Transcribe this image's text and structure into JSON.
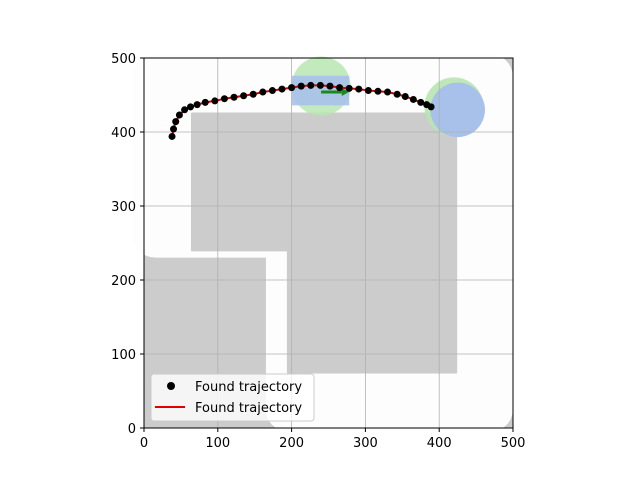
{
  "chart_data": {
    "type": "scatter",
    "title": "",
    "xlabel": "",
    "ylabel": "",
    "xlim": [
      0,
      500
    ],
    "ylim": [
      0,
      500
    ],
    "xticks": [
      0,
      100,
      200,
      300,
      400,
      500
    ],
    "yticks": [
      0,
      100,
      200,
      300,
      400,
      500
    ],
    "grid": true,
    "legend_position": "lower-left",
    "series": [
      {
        "name": "Found trajectory",
        "kind": "points",
        "color": "#000000",
        "x": [
          38,
          40,
          43,
          48,
          55,
          63,
          72,
          83,
          96,
          109,
          122,
          135,
          148,
          161,
          174,
          187,
          200,
          213,
          226,
          239,
          252,
          265,
          278,
          291,
          304,
          317,
          330,
          343,
          354,
          365,
          375,
          383,
          389
        ],
        "y": [
          394,
          404,
          414,
          423,
          430,
          434,
          437,
          440,
          442,
          445,
          447,
          449,
          451,
          454,
          456,
          458,
          460,
          462,
          463,
          463,
          462,
          460,
          459,
          458,
          456,
          455,
          454,
          451,
          448,
          444,
          440,
          437,
          434
        ]
      },
      {
        "name": "Found trajectory",
        "kind": "line",
        "color": "#e00000",
        "x": [
          38,
          40,
          43,
          48,
          55,
          63,
          72,
          83,
          96,
          109,
          122,
          135,
          148,
          161,
          174,
          187,
          200,
          213,
          226,
          239,
          252,
          265,
          278,
          291,
          304,
          317,
          330,
          343,
          354,
          365,
          375,
          383,
          389
        ],
        "y": [
          394,
          404,
          414,
          423,
          430,
          434,
          437,
          440,
          442,
          445,
          447,
          449,
          451,
          454,
          456,
          458,
          460,
          462,
          463,
          463,
          462,
          460,
          459,
          458,
          456,
          455,
          454,
          451,
          448,
          444,
          440,
          437,
          434
        ]
      }
    ],
    "background_map": {
      "grey_color": "#cccccc",
      "road_color": "#fdfdfd",
      "road_outer": [
        [
          15,
          410
        ],
        [
          15,
          260
        ],
        [
          195,
          260
        ],
        [
          195,
          25
        ],
        [
          470,
          25
        ],
        [
          470,
          475
        ],
        [
          15,
          475
        ]
      ],
      "road_inner": [
        [
          65,
          420
        ],
        [
          65,
          240
        ],
        [
          195,
          240
        ],
        [
          195,
          75
        ],
        [
          423,
          75
        ],
        [
          423,
          425
        ],
        [
          65,
          425
        ]
      ],
      "goal_circle": {
        "cx": 240,
        "cy": 462,
        "r": 40,
        "color": "#b8e6b0"
      },
      "goal_box": {
        "x0": 200,
        "y0": 436,
        "x1": 278,
        "y1": 476,
        "color": "#a7c1ea"
      },
      "goal_arrow": {
        "x0": 240,
        "y0": 454,
        "x1": 268,
        "y1": 454,
        "color": "#1a8a1a"
      },
      "start_circle": {
        "cx": 420,
        "cy": 434,
        "r": 40,
        "color": "#b8e6b0"
      },
      "start_blob": {
        "cx": 425,
        "cy": 430,
        "r": 37,
        "color": "#a7c1ea"
      }
    }
  }
}
